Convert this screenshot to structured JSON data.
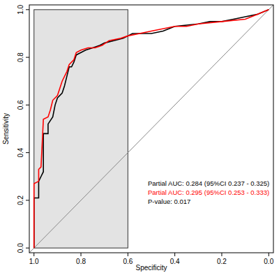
{
  "chart_data": {
    "type": "line",
    "x_label": "Specificity",
    "y_label": "Sensitivity",
    "xlim": [
      1.02,
      -0.02
    ],
    "ylim": [
      -0.02,
      1.02
    ],
    "xticks": [
      {
        "value": 1.0,
        "label": "1.0"
      },
      {
        "value": 0.8,
        "label": "0.8"
      },
      {
        "value": 0.6,
        "label": "0.6"
      },
      {
        "value": 0.4,
        "label": "0.4"
      },
      {
        "value": 0.2,
        "label": "0.2"
      },
      {
        "value": 0.0,
        "label": "0.0"
      }
    ],
    "yticks": [
      {
        "value": 0.0,
        "label": "0.0"
      },
      {
        "value": 0.2,
        "label": "0.2"
      },
      {
        "value": 0.4,
        "label": "0.4"
      },
      {
        "value": 0.6,
        "label": "0.6"
      },
      {
        "value": 0.8,
        "label": "0.8"
      },
      {
        "value": 1.0,
        "label": "1.0"
      }
    ],
    "shaded_region": {
      "x": [
        1.0,
        0.6
      ],
      "y": [
        0.0,
        1.0
      ]
    },
    "series": [
      {
        "color": "#000000",
        "x": [
          1.0,
          1.0,
          0.98,
          0.98,
          0.97,
          0.96,
          0.96,
          0.94,
          0.94,
          0.92,
          0.91,
          0.9,
          0.88,
          0.87,
          0.86,
          0.85,
          0.84,
          0.83,
          0.82,
          0.8,
          0.78,
          0.75,
          0.72,
          0.7,
          0.66,
          0.62,
          0.58,
          0.5,
          0.45,
          0.4,
          0.3,
          0.25,
          0.2,
          0.15,
          0.1,
          0.05,
          0.0
        ],
        "values": [
          0.0,
          0.21,
          0.21,
          0.28,
          0.3,
          0.32,
          0.48,
          0.48,
          0.52,
          0.55,
          0.6,
          0.63,
          0.65,
          0.68,
          0.72,
          0.76,
          0.76,
          0.78,
          0.81,
          0.82,
          0.83,
          0.84,
          0.85,
          0.86,
          0.87,
          0.88,
          0.9,
          0.9,
          0.91,
          0.93,
          0.94,
          0.95,
          0.95,
          0.96,
          0.97,
          0.98,
          1.0
        ]
      },
      {
        "color": "#ff0000",
        "x": [
          1.0,
          1.0,
          0.98,
          0.98,
          0.97,
          0.96,
          0.94,
          0.93,
          0.92,
          0.9,
          0.88,
          0.86,
          0.85,
          0.83,
          0.82,
          0.8,
          0.77,
          0.74,
          0.71,
          0.68,
          0.63,
          0.6,
          0.55,
          0.5,
          0.4,
          0.35,
          0.3,
          0.2,
          0.1,
          0.05,
          0.0
        ],
        "values": [
          0.0,
          0.27,
          0.28,
          0.33,
          0.34,
          0.54,
          0.55,
          0.58,
          0.62,
          0.64,
          0.7,
          0.74,
          0.77,
          0.79,
          0.82,
          0.83,
          0.84,
          0.84,
          0.85,
          0.87,
          0.88,
          0.89,
          0.9,
          0.91,
          0.93,
          0.93,
          0.94,
          0.95,
          0.96,
          0.98,
          1.0
        ]
      }
    ],
    "annotations": [
      {
        "text": "Partial AUC: 0.284 (95%CI 0.237 - 0.325)",
        "color": "#000000"
      },
      {
        "text": "Partial AUC: 0.295 (95%CI 0.253 - 0.333)",
        "color": "#ff0000"
      },
      {
        "text": "P-value: 0.017",
        "color": "#000000"
      }
    ]
  }
}
